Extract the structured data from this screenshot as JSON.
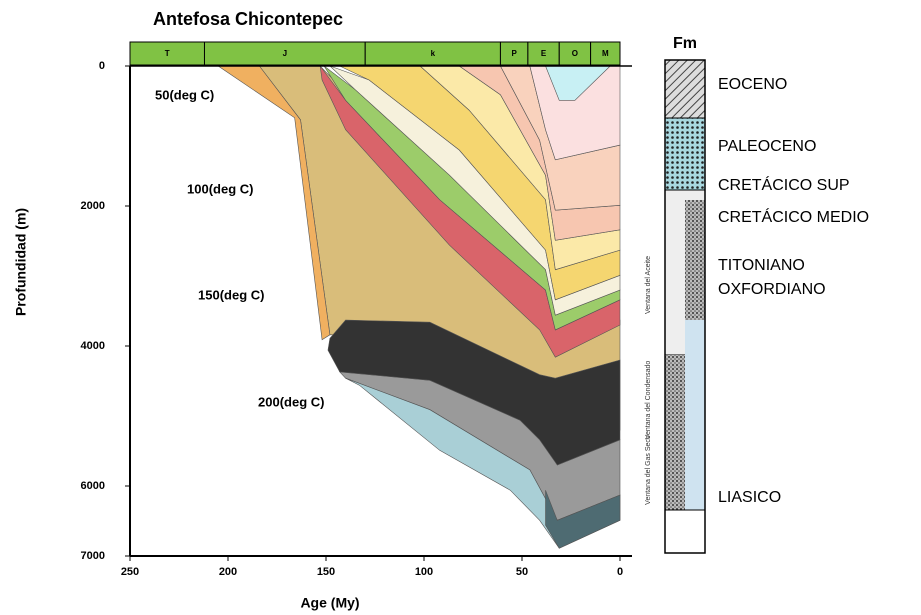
{
  "chart_data": {
    "type": "burial-history",
    "title": "Antefosa Chicontepec",
    "xlabel": "Age (My)",
    "ylabel": "Profundidad (m)",
    "xlim": [
      250,
      0
    ],
    "ylim": [
      7000,
      0
    ],
    "xticks": [
      250,
      200,
      150,
      100,
      50,
      0
    ],
    "yticks": [
      0,
      2000,
      4000,
      6000,
      7000
    ],
    "periods": [
      {
        "label": "T",
        "range": [
          250,
          212
        ]
      },
      {
        "label": "J",
        "range": [
          212,
          130
        ]
      },
      {
        "label": "k",
        "range": [
          130,
          61
        ]
      },
      {
        "label": "P",
        "range": [
          61,
          47
        ]
      },
      {
        "label": "E",
        "range": [
          47,
          31
        ]
      },
      {
        "label": "O",
        "range": [
          31,
          15
        ]
      },
      {
        "label": "M",
        "range": [
          15,
          0
        ]
      }
    ],
    "layers": [
      {
        "color": "#d9bd7a",
        "x": [
          184,
          153,
          38,
          31,
          0,
          0,
          31,
          38,
          97,
          148,
          163
        ],
        "values": [
          0,
          0,
          3340,
          3770,
          3630,
          5200,
          4770,
          4630,
          3840,
          3840,
          770
        ]
      },
      {
        "color": "#f0b060",
        "x": [
          205,
          184,
          163,
          148,
          152,
          166
        ],
        "values": [
          0,
          0,
          770,
          3840,
          3910,
          740
        ]
      },
      {
        "color": "#9a9a9a",
        "x": [
          143,
          97,
          51,
          38,
          32,
          0,
          0,
          32,
          46,
          97,
          140
        ],
        "values": [
          4370,
          4490,
          5060,
          5410,
          5700,
          5340,
          6130,
          6490,
          5770,
          4910,
          4460
        ]
      },
      {
        "color": "#a9cfd6",
        "x": [
          140,
          97,
          46,
          32,
          0,
          0,
          31,
          41,
          56,
          92,
          133
        ],
        "values": [
          4460,
          4910,
          5770,
          6490,
          6130,
          6490,
          6890,
          6490,
          6060,
          5490,
          4560
        ]
      },
      {
        "color": "#4e6b72",
        "x": [
          38,
          32,
          0,
          0,
          31,
          38
        ],
        "values": [
          6060,
          6490,
          6130,
          6490,
          6890,
          6560
        ]
      },
      {
        "color": "#333333",
        "x": [
          148,
          140,
          97,
          41,
          33,
          0,
          0,
          32,
          41,
          51,
          97,
          143,
          149
        ],
        "values": [
          3890,
          3630,
          3660,
          4410,
          4460,
          4200,
          5340,
          5700,
          5340,
          5060,
          4490,
          4370,
          4060
        ]
      },
      {
        "color": "#d9646a",
        "x": [
          153,
          140,
          92,
          38,
          33,
          0,
          0,
          33,
          41,
          87,
          140,
          152
        ],
        "values": [
          0,
          490,
          1910,
          3200,
          3770,
          3340,
          3700,
          4160,
          3770,
          2560,
          910,
          200
        ]
      },
      {
        "color": "#9ccc6a",
        "x": [
          151,
          135,
          87,
          38,
          33,
          0,
          0,
          33,
          38,
          92,
          140
        ],
        "values": [
          0,
          340,
          1560,
          2910,
          3560,
          3200,
          3340,
          3770,
          3200,
          1910,
          490
        ]
      },
      {
        "color": "#f6f1dc",
        "x": [
          148,
          128,
          82,
          38,
          33,
          0,
          0,
          33,
          38,
          87,
          135
        ],
        "values": [
          0,
          200,
          1200,
          2630,
          3340,
          2990,
          3200,
          3560,
          2910,
          1560,
          340
        ]
      },
      {
        "color": "#f5d670",
        "x": [
          143,
          102,
          77,
          38,
          33,
          0,
          0,
          33,
          38,
          82,
          128
        ],
        "values": [
          0,
          0,
          630,
          1910,
          2910,
          2630,
          2990,
          3340,
          2630,
          1200,
          200
        ]
      },
      {
        "color": "#fbe9a8",
        "x": [
          102,
          82,
          61,
          38,
          33,
          0,
          0,
          33,
          38,
          77
        ],
        "values": [
          0,
          0,
          410,
          1560,
          2490,
          2340,
          2630,
          2910,
          1910,
          630
        ]
      },
      {
        "color": "#f7c6b0",
        "x": [
          82,
          61,
          41,
          33,
          0,
          0,
          33,
          38,
          61
        ],
        "values": [
          0,
          0,
          1060,
          2060,
          1990,
          2340,
          2490,
          1560,
          410
        ]
      },
      {
        "color": "#f9d2bd",
        "x": [
          61,
          46,
          38,
          33,
          0,
          0,
          33,
          41
        ],
        "values": [
          0,
          0,
          910,
          1340,
          1130,
          1990,
          2060,
          1060
        ]
      },
      {
        "color": "#fbe0e0",
        "x": [
          46,
          0,
          0,
          33,
          38
        ],
        "values": [
          0,
          0,
          1130,
          1340,
          910
        ]
      },
      {
        "color": "#c8f0f4",
        "x": [
          38,
          5,
          23,
          31
        ],
        "values": [
          0,
          0,
          490,
          490
        ]
      }
    ],
    "isotherm_labels": [
      "50(deg C)",
      "100(deg C)",
      "150(deg C)",
      "200(deg C)"
    ],
    "windows": [
      "Ventana del Aceite",
      "Ventana del Condensado",
      "Ventana del Gas Seco"
    ],
    "column_label": "Fm",
    "formations": [
      "EOCENO",
      "PALEOCENO",
      "CRETÁCICO SUP",
      "CRETÁCICO MEDIO",
      "TITONIANO",
      "OXFORDIANO",
      "LIASICO"
    ]
  }
}
